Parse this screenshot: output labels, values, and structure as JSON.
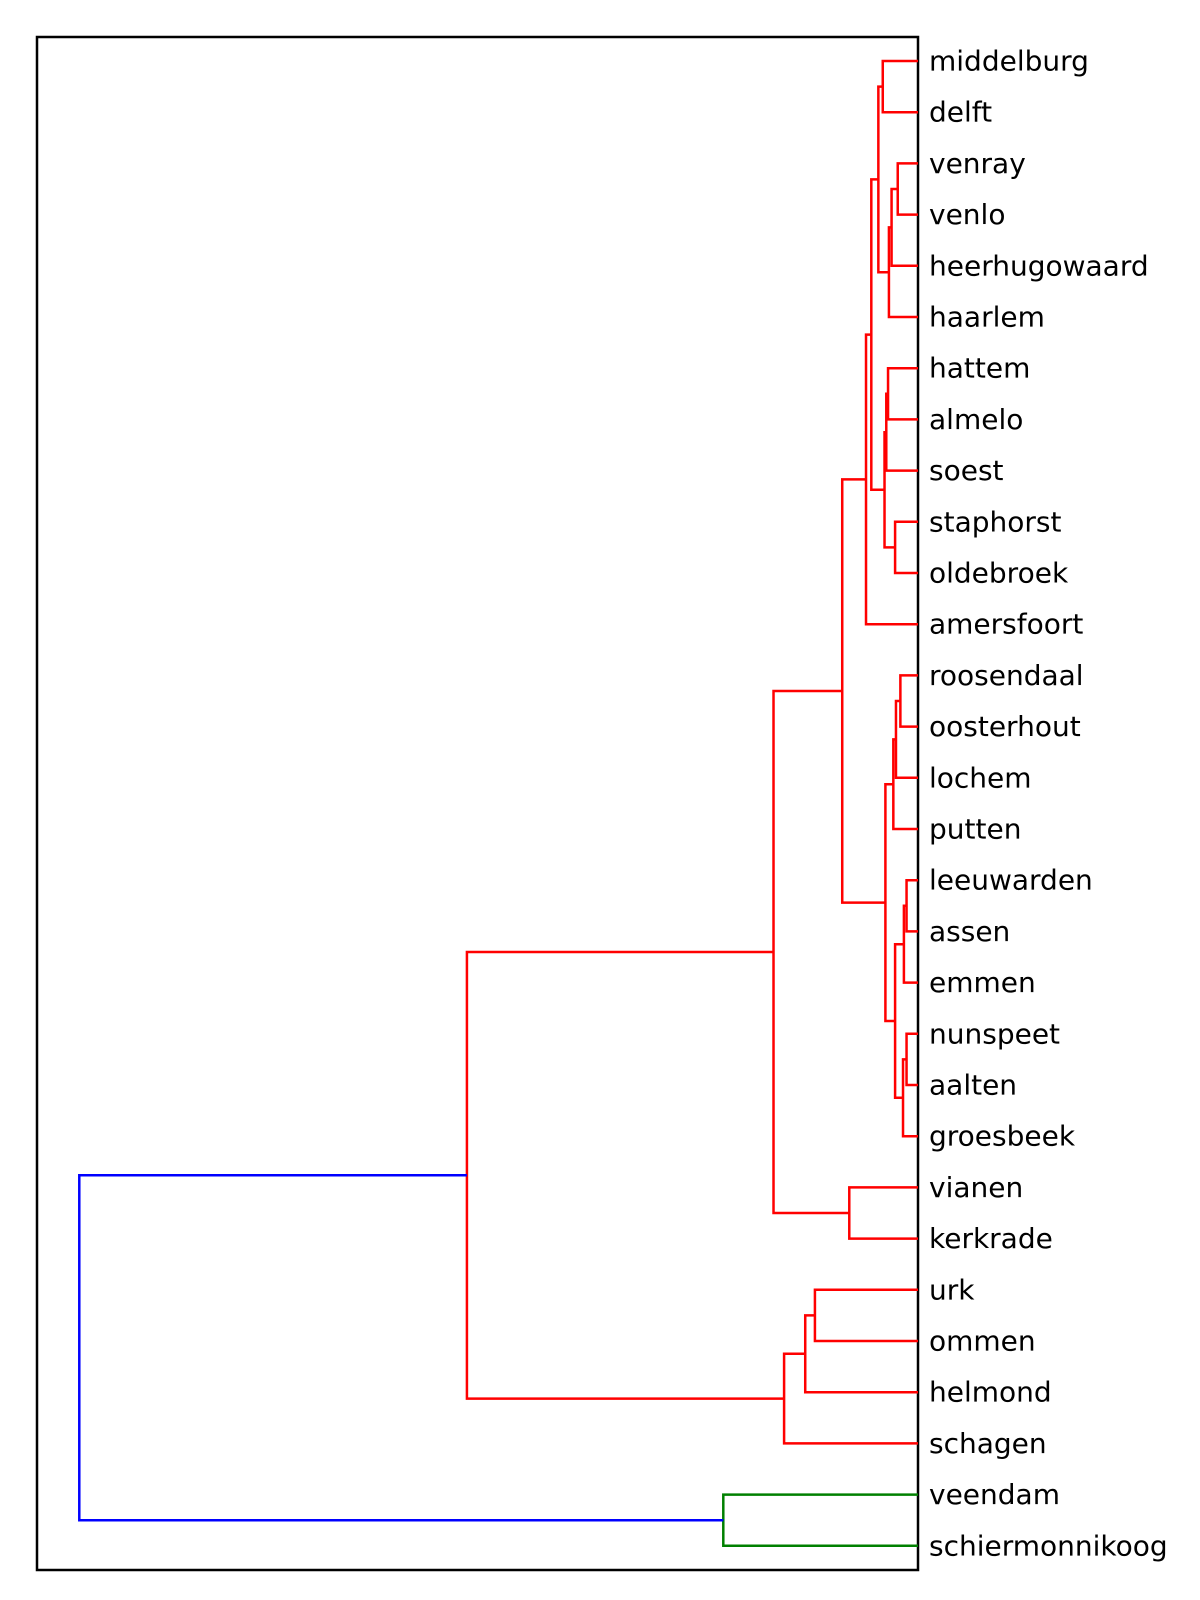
{
  "chart_data": {
    "type": "dendrogram",
    "orientation": "right",
    "title": "",
    "xlabel": "",
    "ylabel": "",
    "leaves": [
      "middelburg",
      "delft",
      "venray",
      "venlo",
      "heerhugowaard",
      "haarlem",
      "hattem",
      "almelo",
      "soest",
      "staphorst",
      "oldebroek",
      "amersfoort",
      "roosendaal",
      "oosterhout",
      "lochem",
      "putten",
      "leeuwarden",
      "assen",
      "emmen",
      "nunspeet",
      "aalten",
      "groesbeek",
      "vianen",
      "kerkrade",
      "urk",
      "ommen",
      "helmond",
      "schagen",
      "veendam",
      "schiermonnikoog"
    ],
    "merge_height_max": 1.0,
    "colors": {
      "cluster_a": "#ff0000",
      "cluster_b": "#008000",
      "root": "#0000ff",
      "frame": "#000000"
    },
    "merges": [
      {
        "id": "m0",
        "a": "L0",
        "b": "L1",
        "h": 0.04,
        "color": "cluster_a"
      },
      {
        "id": "m1",
        "a": "L2",
        "b": "L3",
        "h": 0.023,
        "color": "cluster_a"
      },
      {
        "id": "m2",
        "a": "m1",
        "b": "L4",
        "h": 0.03,
        "color": "cluster_a"
      },
      {
        "id": "m3",
        "a": "m2",
        "b": "L5",
        "h": 0.033,
        "color": "cluster_a"
      },
      {
        "id": "m4",
        "a": "m0",
        "b": "m3",
        "h": 0.045,
        "color": "cluster_a"
      },
      {
        "id": "m5",
        "a": "L6",
        "b": "L7",
        "h": 0.034,
        "color": "cluster_a"
      },
      {
        "id": "m6",
        "a": "m5",
        "b": "L8",
        "h": 0.036,
        "color": "cluster_a"
      },
      {
        "id": "m7",
        "a": "L9",
        "b": "L10",
        "h": 0.026,
        "color": "cluster_a"
      },
      {
        "id": "m8",
        "a": "m6",
        "b": "m7",
        "h": 0.038,
        "color": "cluster_a"
      },
      {
        "id": "m9",
        "a": "m4",
        "b": "m8",
        "h": 0.053,
        "color": "cluster_a"
      },
      {
        "id": "m10",
        "a": "m9",
        "b": "L11",
        "h": 0.059,
        "color": "cluster_a"
      },
      {
        "id": "m11",
        "a": "L12",
        "b": "L13",
        "h": 0.02,
        "color": "cluster_a"
      },
      {
        "id": "m12",
        "a": "m11",
        "b": "L14",
        "h": 0.025,
        "color": "cluster_a"
      },
      {
        "id": "m13",
        "a": "m12",
        "b": "L15",
        "h": 0.028,
        "color": "cluster_a"
      },
      {
        "id": "m14",
        "a": "L16",
        "b": "L17",
        "h": 0.013,
        "color": "cluster_a"
      },
      {
        "id": "m15",
        "a": "m14",
        "b": "L18",
        "h": 0.016,
        "color": "cluster_a"
      },
      {
        "id": "m16",
        "a": "L19",
        "b": "L20",
        "h": 0.013,
        "color": "cluster_a"
      },
      {
        "id": "m17",
        "a": "m16",
        "b": "L21",
        "h": 0.017,
        "color": "cluster_a"
      },
      {
        "id": "m18",
        "a": "m15",
        "b": "m17",
        "h": 0.026,
        "color": "cluster_a"
      },
      {
        "id": "m19",
        "a": "m13",
        "b": "m18",
        "h": 0.037,
        "color": "cluster_a"
      },
      {
        "id": "m20",
        "a": "m10",
        "b": "m19",
        "h": 0.086,
        "color": "cluster_a"
      },
      {
        "id": "m21",
        "a": "L22",
        "b": "L23",
        "h": 0.078,
        "color": "cluster_a"
      },
      {
        "id": "m22",
        "a": "m20",
        "b": "m21",
        "h": 0.164,
        "color": "cluster_a"
      },
      {
        "id": "m23",
        "a": "L24",
        "b": "L25",
        "h": 0.117,
        "color": "cluster_a"
      },
      {
        "id": "m24",
        "a": "m23",
        "b": "L26",
        "h": 0.128,
        "color": "cluster_a"
      },
      {
        "id": "m25",
        "a": "m24",
        "b": "L27",
        "h": 0.152,
        "color": "cluster_a"
      },
      {
        "id": "m26",
        "a": "m22",
        "b": "m25",
        "h": 0.512,
        "color": "cluster_a"
      },
      {
        "id": "m27",
        "a": "L28",
        "b": "L29",
        "h": 0.221,
        "color": "cluster_b"
      },
      {
        "id": "m28",
        "a": "m26",
        "b": "m27",
        "h": 0.952,
        "color": "root"
      }
    ]
  }
}
